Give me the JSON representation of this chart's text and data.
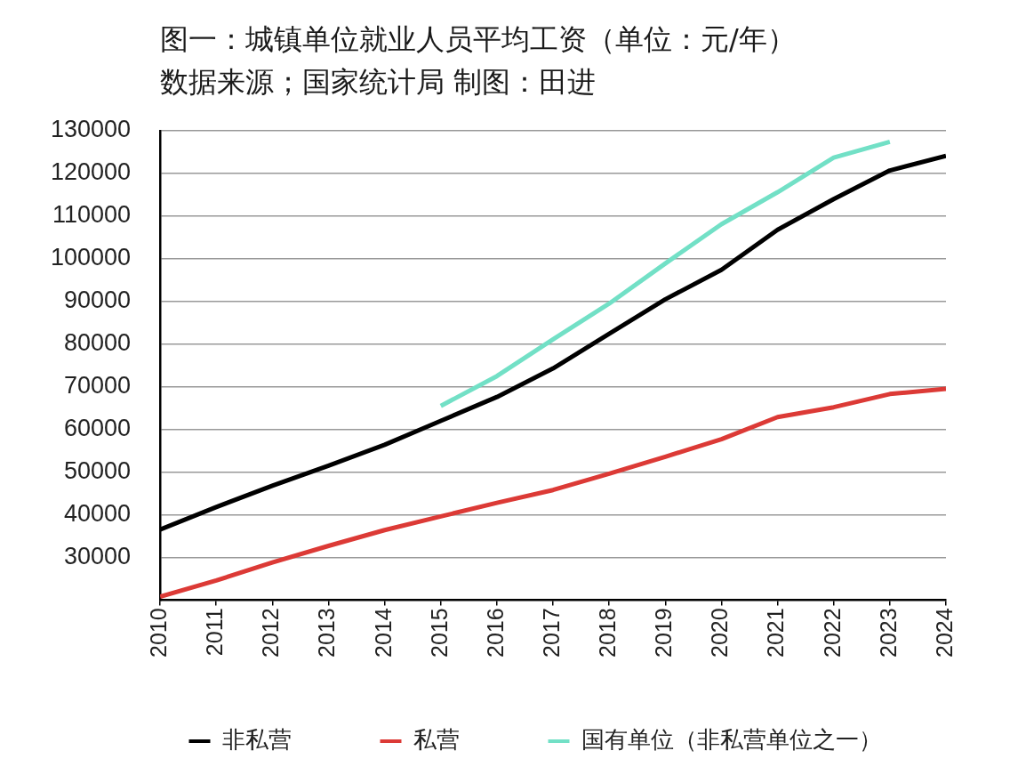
{
  "chart_data": {
    "type": "line",
    "title": "图一：城镇单位就业人员平均工资（单位：元/年）",
    "annotations": [
      "数据来源；国家统计局 制图：田进"
    ],
    "x": [
      2010,
      2011,
      2012,
      2013,
      2014,
      2015,
      2016,
      2017,
      2018,
      2019,
      2020,
      2021,
      2022,
      2023,
      2024
    ],
    "xlim": [
      2010,
      2024
    ],
    "xticks": [
      2010,
      2011,
      2012,
      2013,
      2014,
      2015,
      2016,
      2017,
      2018,
      2019,
      2020,
      2021,
      2022,
      2023,
      2024
    ],
    "ylim": [
      20000,
      130000
    ],
    "yticks": [
      30000,
      40000,
      50000,
      60000,
      70000,
      80000,
      90000,
      100000,
      110000,
      120000,
      130000
    ],
    "grid": "y",
    "legend": "bottom",
    "series": [
      {
        "name": "非私营",
        "color": "#000000",
        "values": [
          36500,
          41800,
          46800,
          51500,
          56400,
          62000,
          67600,
          74300,
          82400,
          90500,
          97400,
          106800,
          114000,
          120700,
          124100
        ]
      },
      {
        "name": "私营",
        "color": "#dc3a36",
        "values": [
          20800,
          24600,
          28800,
          32700,
          36400,
          39600,
          42800,
          45800,
          49600,
          53600,
          57700,
          62900,
          65200,
          68300,
          69500
        ]
      },
      {
        "name": "国有单位（非私营单位之一）",
        "color": "#72e0c6",
        "x": [
          2015,
          2016,
          2017,
          2018,
          2019,
          2020,
          2021,
          2022,
          2023
        ],
        "values": [
          65500,
          72500,
          81100,
          89500,
          98900,
          108100,
          115600,
          123700,
          127400
        ]
      }
    ]
  }
}
